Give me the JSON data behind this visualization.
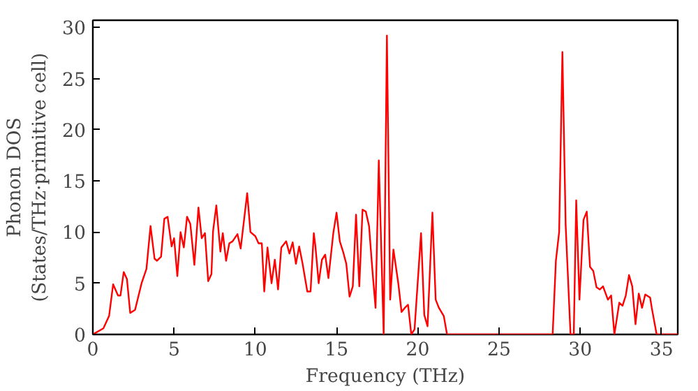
{
  "chart_data": {
    "type": "line",
    "xlabel": "Frequency (THz)",
    "ylabel": "Phonon DOS\n(States/THz·primitive cell)",
    "xlim": [
      0,
      36
    ],
    "ylim": [
      0,
      30.7
    ],
    "xticks": [
      0,
      5,
      10,
      15,
      20,
      25,
      30,
      35
    ],
    "yticks": [
      0,
      5,
      10,
      15,
      20,
      25,
      30
    ],
    "grid": false,
    "marker": "none",
    "line_style": "solid",
    "series": [
      {
        "color": "#ff0000",
        "x": [
          0,
          0.65,
          1.0,
          1.25,
          1.55,
          1.7,
          1.9,
          2.1,
          2.3,
          2.6,
          3.0,
          3.3,
          3.55,
          3.8,
          3.95,
          4.2,
          4.4,
          4.6,
          4.85,
          5.0,
          5.2,
          5.4,
          5.6,
          5.8,
          6.0,
          6.25,
          6.5,
          6.7,
          6.9,
          7.1,
          7.3,
          7.4,
          7.6,
          7.85,
          8.0,
          8.2,
          8.4,
          8.6,
          8.9,
          9.1,
          9.5,
          9.7,
          10.0,
          10.2,
          10.4,
          10.55,
          10.75,
          11.0,
          11.2,
          11.4,
          11.6,
          11.9,
          12.1,
          12.3,
          12.5,
          12.7,
          12.9,
          13.2,
          13.4,
          13.6,
          13.7,
          13.9,
          14.1,
          14.3,
          14.5,
          14.8,
          15.0,
          15.2,
          15.4,
          15.6,
          15.8,
          16.0,
          16.2,
          16.4,
          16.6,
          16.8,
          17.0,
          17.2,
          17.4,
          17.6,
          17.9,
          18.1,
          18.3,
          18.5,
          18.8,
          19.0,
          19.2,
          19.4,
          19.6,
          19.8,
          20.2,
          20.4,
          20.6,
          20.9,
          21.1,
          21.3,
          21.6,
          21.8,
          28.3,
          28.5,
          28.7,
          28.9,
          29.1,
          29.4,
          29.6,
          29.75,
          29.95,
          30.2,
          30.4,
          30.6,
          30.8,
          31.0,
          31.2,
          31.4,
          31.7,
          31.9,
          32.1,
          32.4,
          32.6,
          32.8,
          33.0,
          33.2,
          33.4,
          33.6,
          33.8,
          34.0,
          34.3,
          34.4,
          34.7,
          36
        ],
        "values": [
          0,
          0.6,
          1.8,
          4.9,
          3.8,
          3.8,
          6.1,
          5.4,
          2.1,
          2.4,
          5.0,
          6.4,
          10.6,
          7.4,
          7.2,
          7.6,
          11.3,
          11.5,
          8.6,
          9.4,
          5.7,
          10.0,
          8.5,
          11.5,
          10.8,
          6.8,
          12.4,
          9.4,
          9.9,
          5.2,
          5.9,
          10.1,
          12.6,
          8.1,
          9.9,
          7.2,
          8.9,
          9.1,
          9.8,
          8.4,
          13.8,
          10.0,
          9.6,
          8.9,
          8.9,
          4.2,
          8.5,
          5.0,
          7.3,
          4.4,
          8.5,
          9.1,
          7.9,
          9.0,
          6.9,
          8.6,
          7.0,
          4.2,
          4.2,
          9.9,
          8.6,
          5.0,
          7.3,
          7.8,
          5.5,
          9.9,
          11.9,
          9.1,
          8.1,
          6.9,
          3.7,
          4.7,
          11.7,
          4.7,
          12.2,
          12.0,
          10.6,
          6.4,
          2.6,
          17.0,
          0,
          29.2,
          3.4,
          8.3,
          5.0,
          2.2,
          2.6,
          2.9,
          0,
          0.5,
          9.9,
          1.9,
          0.8,
          11.9,
          3.4,
          2.6,
          1.8,
          0,
          0,
          7.2,
          10.0,
          27.6,
          10.7,
          0,
          0,
          13.1,
          3.4,
          11.2,
          12.0,
          6.6,
          6.2,
          4.6,
          4.4,
          4.7,
          3.4,
          3.8,
          0,
          3.1,
          2.8,
          3.8,
          5.8,
          4.7,
          1.0,
          4.0,
          2.6,
          3.9,
          3.6,
          2.6,
          0,
          0
        ]
      }
    ]
  }
}
